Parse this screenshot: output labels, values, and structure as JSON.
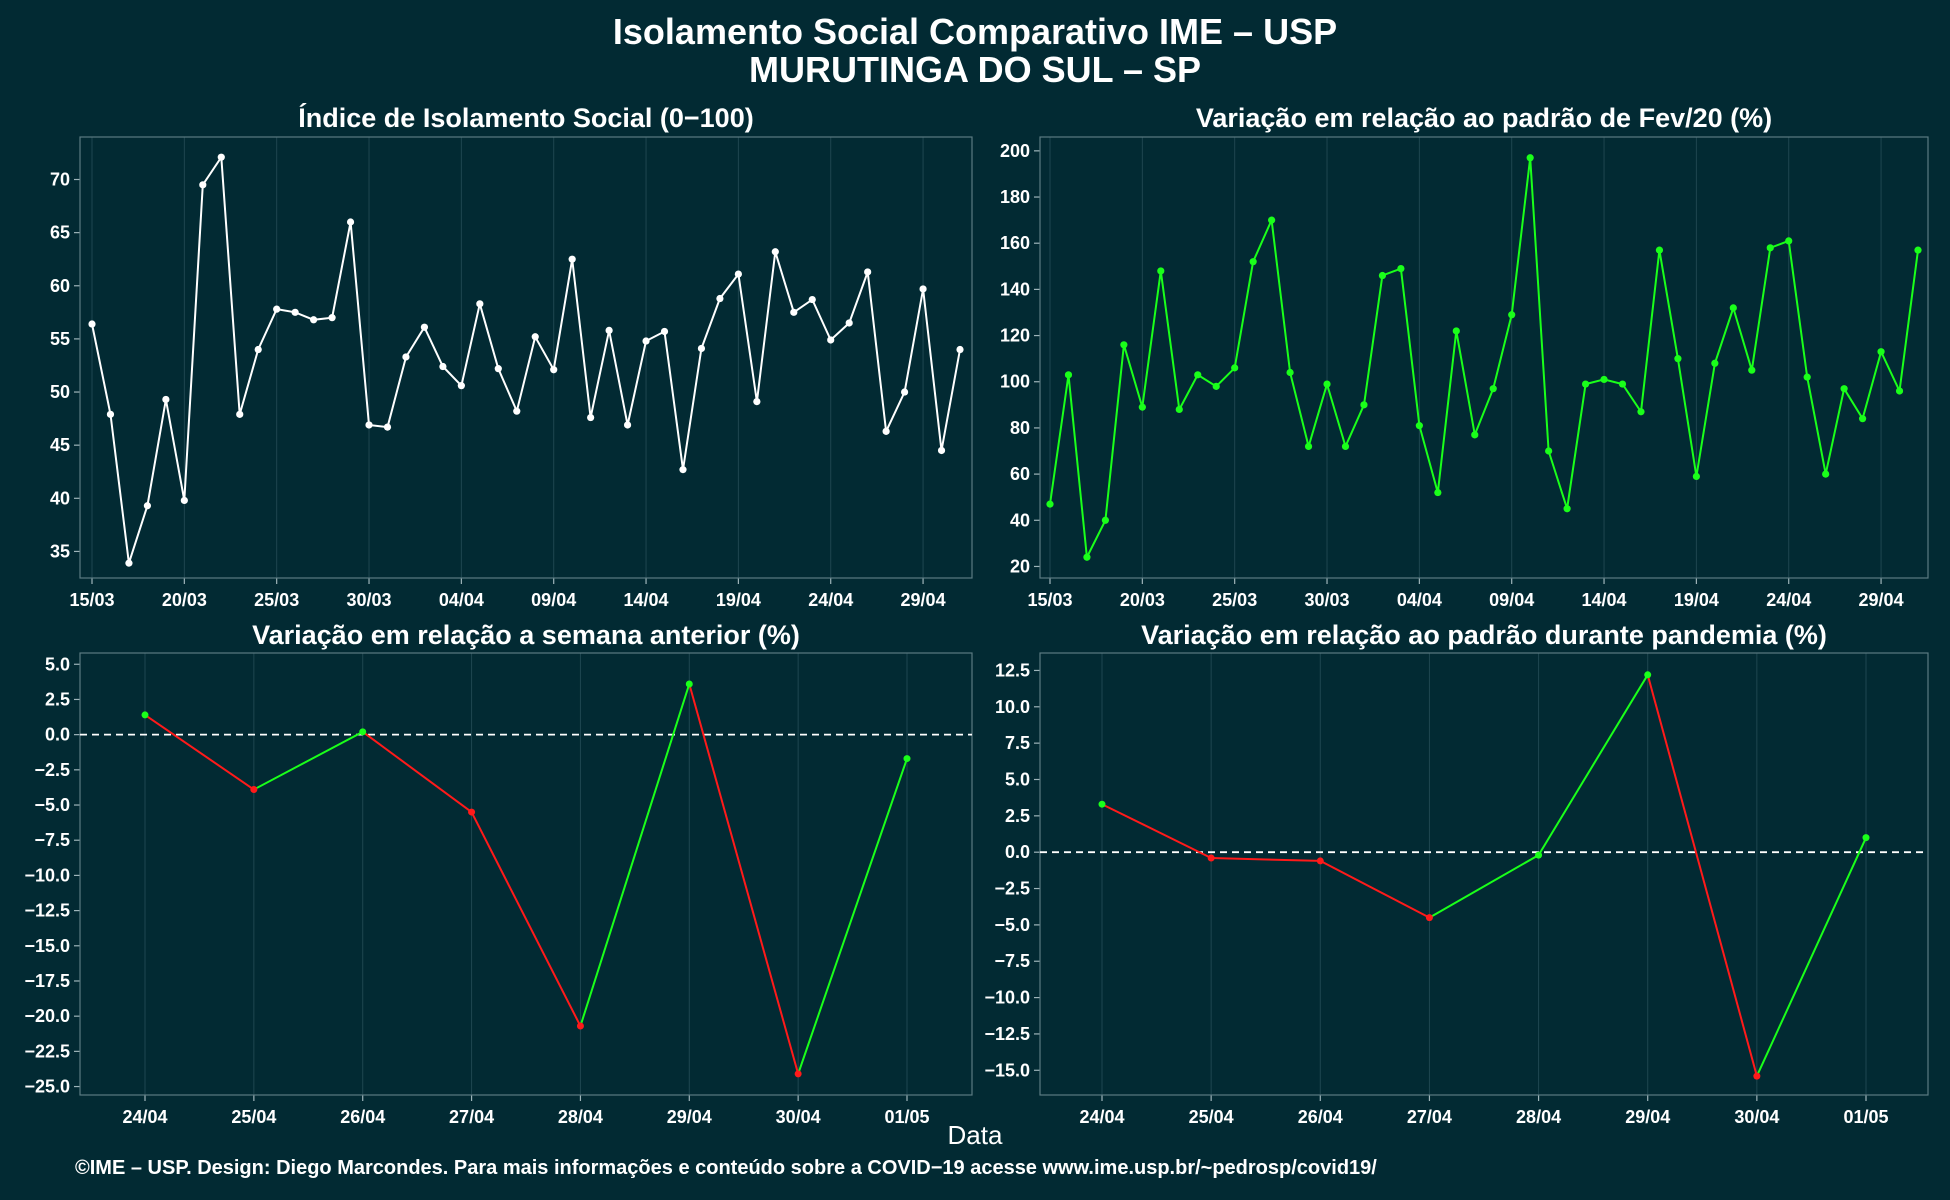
{
  "title_line1": "Isolamento Social Comparativo IME – USP",
  "title_line2": "MURUTINGA DO SUL – SP",
  "xlabel": "Data",
  "footer": "©IME – USP. Design: Diego Marcondes. Para mais informações e conteúdo sobre a COVID−19 acesse www.ime.usp.br/~pedrosp/covid19/",
  "colors": {
    "background": "#022a33",
    "white_line": "#ffffff",
    "green": "#1aff1a",
    "red": "#ff1a1a",
    "grid": "#1f4650",
    "frame": "#5b7b82"
  },
  "chart_data": [
    {
      "id": "indice",
      "type": "line",
      "title": "Índice de Isolamento Social (0−100)",
      "x_start": "2020-03-15",
      "x_ticks": [
        "15/03",
        "20/03",
        "25/03",
        "30/03",
        "04/04",
        "09/04",
        "14/04",
        "19/04",
        "24/04",
        "29/04"
      ],
      "y_ticks": [
        35,
        40,
        45,
        50,
        55,
        60,
        65,
        70
      ],
      "ylim": [
        32.5,
        74
      ],
      "values": [
        56.4,
        47.9,
        33.9,
        39.3,
        49.3,
        39.8,
        69.5,
        72.1,
        47.9,
        54.0,
        57.8,
        57.5,
        56.8,
        57.0,
        66.0,
        46.9,
        46.7,
        53.3,
        56.1,
        52.4,
        50.6,
        58.3,
        52.2,
        48.2,
        55.2,
        52.1,
        62.5,
        47.6,
        55.8,
        46.9,
        54.8,
        55.7,
        42.7,
        54.1,
        58.8,
        61.1,
        49.1,
        63.2,
        57.5,
        58.7,
        54.9,
        56.5,
        61.3,
        46.3,
        50.0,
        59.7,
        44.5,
        54.0
      ],
      "color": "white"
    },
    {
      "id": "fev",
      "type": "line",
      "title": "Variação em relação ao padrão de Fev/20 (%)",
      "x_start": "2020-03-15",
      "x_ticks": [
        "15/03",
        "20/03",
        "25/03",
        "30/03",
        "04/04",
        "09/04",
        "14/04",
        "19/04",
        "24/04",
        "29/04"
      ],
      "y_ticks": [
        20,
        40,
        60,
        80,
        100,
        120,
        140,
        160,
        180,
        200
      ],
      "ylim": [
        15,
        206
      ],
      "values": [
        47,
        103,
        24,
        40,
        116,
        89,
        148,
        88,
        103,
        98,
        106,
        152,
        170,
        104,
        72,
        99,
        72,
        90,
        146,
        149,
        81,
        52,
        122,
        77,
        97,
        129,
        197,
        70,
        45,
        99,
        101,
        99,
        87,
        157,
        110,
        59,
        108,
        132,
        105,
        158,
        161,
        102,
        60,
        97,
        84,
        113,
        96,
        157
      ],
      "color": "green"
    },
    {
      "id": "semana",
      "type": "line",
      "title": "Variação em relação a semana anterior (%)",
      "categories": [
        "24/04",
        "25/04",
        "26/04",
        "27/04",
        "28/04",
        "29/04",
        "30/04",
        "01/05"
      ],
      "y_ticks": [
        "5.0",
        "2.5",
        "0.0",
        "−2.5",
        "−5.0",
        "−7.5",
        "−10.0",
        "−12.5",
        "−15.0",
        "−17.5",
        "−20.0",
        "−22.5",
        "−25.0"
      ],
      "ylim": [
        -25.6,
        5.8
      ],
      "values": [
        1.4,
        -3.9,
        0.2,
        -5.5,
        -20.7,
        3.6,
        -24.1,
        -1.7
      ],
      "reference_line": 0,
      "segment_colors": "green if rising, red if falling"
    },
    {
      "id": "pandemia",
      "type": "line",
      "title": "Variação em relação ao padrão durante pandemia (%)",
      "categories": [
        "24/04",
        "25/04",
        "26/04",
        "27/04",
        "28/04",
        "29/04",
        "30/04",
        "01/05"
      ],
      "y_ticks": [
        "12.5",
        "10.0",
        "7.5",
        "5.0",
        "2.5",
        "0.0",
        "−2.5",
        "−5.0",
        "−7.5",
        "−10.0",
        "−12.5",
        "−15.0"
      ],
      "ylim": [
        -16.7,
        13.7
      ],
      "values": [
        3.3,
        -0.4,
        -0.6,
        -4.5,
        -0.2,
        12.2,
        -15.4,
        1.0
      ],
      "reference_line": 0,
      "segment_colors": "green if rising, red if falling"
    }
  ]
}
